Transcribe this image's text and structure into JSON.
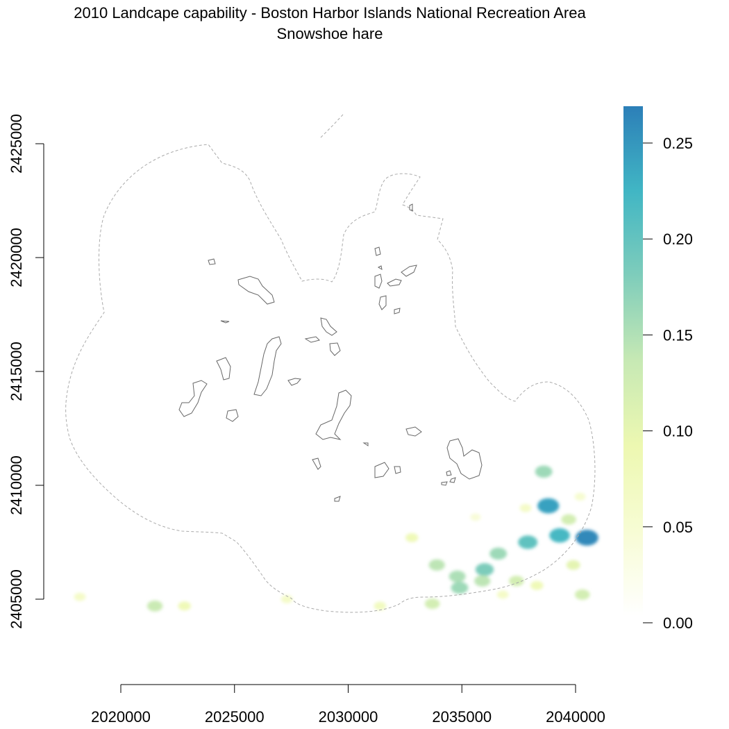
{
  "title": "2010 Landcape capability - Boston Harbor Islands National Recreation Area",
  "subtitle": "Snowshoe hare",
  "chart_data": {
    "type": "heatmap",
    "title": "2010 Landcape capability - Boston Harbor Islands National Recreation Area",
    "subtitle": "Snowshoe hare",
    "xlabel": "",
    "ylabel": "",
    "xlim": [
      2018000,
      2041000
    ],
    "ylim": [
      2404200,
      2426500
    ],
    "x_ticks": [
      2020000,
      2025000,
      2030000,
      2035000,
      2040000
    ],
    "x_tick_labels": [
      "2020000",
      "2025000",
      "2030000",
      "2035000",
      "2040000"
    ],
    "y_ticks": [
      2405000,
      2410000,
      2415000,
      2420000,
      2425000
    ],
    "y_tick_labels": [
      "2405000",
      "2410000",
      "2415000",
      "2420000",
      "2425000"
    ],
    "legend": {
      "placement": "right",
      "range": [
        0,
        0.268
      ],
      "ticks": [
        0,
        0.05,
        0.1,
        0.15,
        0.2,
        0.25
      ],
      "tick_labels": [
        "0.00",
        "0.05",
        "0.10",
        "0.15",
        "0.20",
        "0.25"
      ],
      "colors": [
        "#ffffff",
        "#f7fcd4",
        "#edf8b1",
        "#c7e9b4",
        "#7fcdbb",
        "#41b6c4",
        "#2c7fb8"
      ]
    },
    "patches": [
      {
        "x": 2038800,
        "y": 2409100,
        "v": 0.24
      },
      {
        "x": 2039300,
        "y": 2407800,
        "v": 0.22
      },
      {
        "x": 2040500,
        "y": 2407700,
        "v": 0.26
      },
      {
        "x": 2037900,
        "y": 2407500,
        "v": 0.2
      },
      {
        "x": 2038600,
        "y": 2410600,
        "v": 0.16
      },
      {
        "x": 2036000,
        "y": 2406300,
        "v": 0.18
      },
      {
        "x": 2035900,
        "y": 2405800,
        "v": 0.14
      },
      {
        "x": 2034800,
        "y": 2406000,
        "v": 0.15
      },
      {
        "x": 2033900,
        "y": 2406500,
        "v": 0.14
      },
      {
        "x": 2034900,
        "y": 2405500,
        "v": 0.16
      },
      {
        "x": 2037400,
        "y": 2405800,
        "v": 0.12
      },
      {
        "x": 2036600,
        "y": 2407000,
        "v": 0.16
      },
      {
        "x": 2039900,
        "y": 2406500,
        "v": 0.1
      },
      {
        "x": 2040300,
        "y": 2405200,
        "v": 0.12
      },
      {
        "x": 2033700,
        "y": 2404800,
        "v": 0.12
      },
      {
        "x": 2032800,
        "y": 2407700,
        "v": 0.08
      },
      {
        "x": 2031400,
        "y": 2404700,
        "v": 0.07
      },
      {
        "x": 2027300,
        "y": 2405000,
        "v": 0.06
      },
      {
        "x": 2021500,
        "y": 2404700,
        "v": 0.13
      },
      {
        "x": 2022800,
        "y": 2404700,
        "v": 0.08
      },
      {
        "x": 2018200,
        "y": 2405100,
        "v": 0.06
      },
      {
        "x": 2037800,
        "y": 2409000,
        "v": 0.06
      },
      {
        "x": 2039700,
        "y": 2408500,
        "v": 0.12
      },
      {
        "x": 2036800,
        "y": 2405200,
        "v": 0.06
      },
      {
        "x": 2038300,
        "y": 2405600,
        "v": 0.08
      },
      {
        "x": 2040200,
        "y": 2409500,
        "v": 0.05
      },
      {
        "x": 2035600,
        "y": 2408600,
        "v": 0.04
      }
    ]
  }
}
